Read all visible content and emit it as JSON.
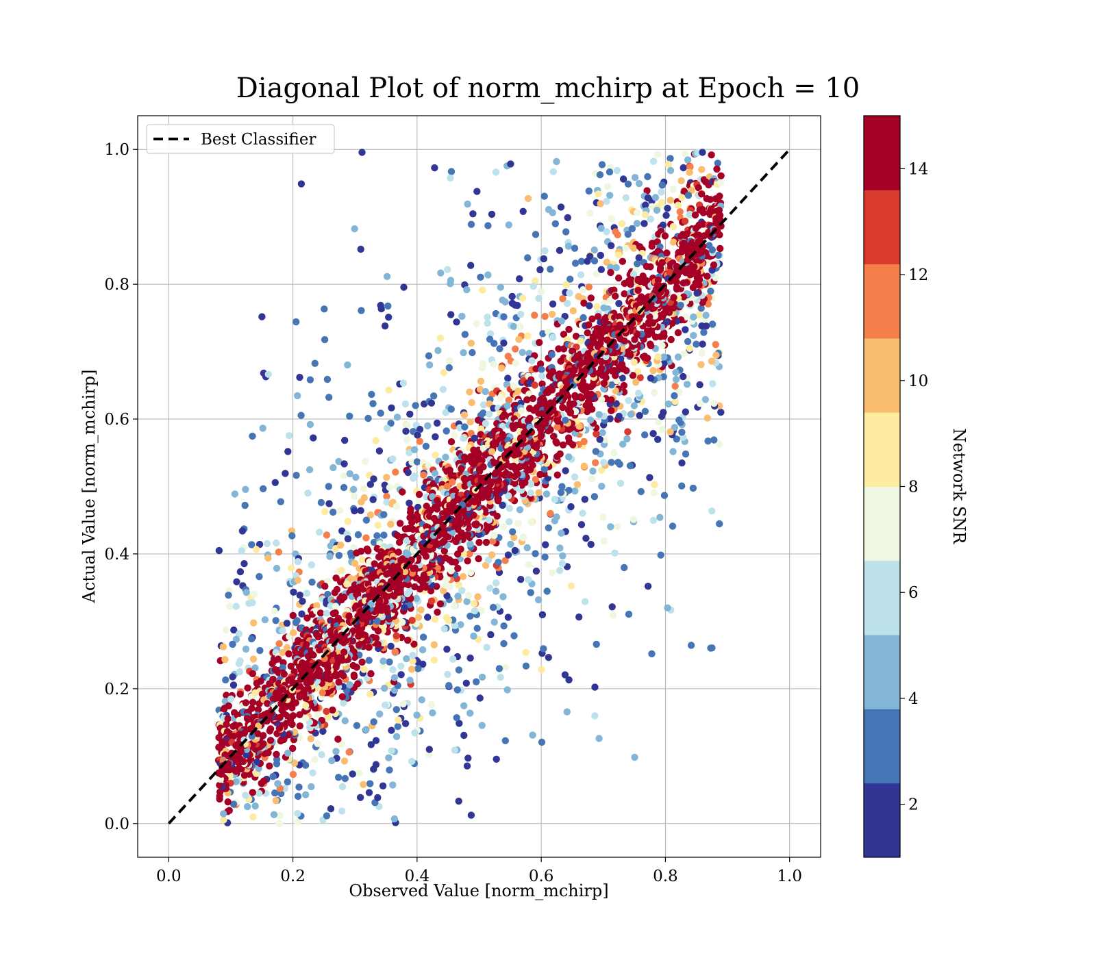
{
  "chart_data": {
    "type": "scatter",
    "title": "Diagonal Plot of norm_mchirp at Epoch = 10",
    "xlabel": "Observed Value [norm_mchirp]",
    "ylabel": "Actual Value [norm_mchirp]",
    "xlim": [
      -0.05,
      1.05
    ],
    "ylim": [
      -0.05,
      1.05
    ],
    "x_ticks": [
      "0.0",
      "0.2",
      "0.4",
      "0.6",
      "0.8",
      "1.0"
    ],
    "y_ticks": [
      "0.0",
      "0.2",
      "0.4",
      "0.6",
      "0.8",
      "1.0"
    ],
    "grid": true,
    "legend": {
      "placement": "top-left",
      "entries": [
        "Best Classifier"
      ]
    },
    "reference_line": {
      "name": "Best Classifier",
      "style": "dashed",
      "color": "#000000",
      "x": [
        0,
        1
      ],
      "y": [
        0,
        1
      ]
    },
    "colorbar": {
      "label": "Network SNR",
      "range": [
        1,
        15
      ],
      "ticks": [
        "2",
        "4",
        "6",
        "8",
        "10",
        "12",
        "14"
      ],
      "bins": [
        1,
        2.4,
        3.8,
        5.2,
        6.6,
        8.0,
        9.4,
        10.8,
        12.2,
        13.6,
        15
      ],
      "colors": [
        "#313695",
        "#4575b4",
        "#83b6d6",
        "#bde2ec",
        "#eef7df",
        "#fdeba0",
        "#fbbd70",
        "#f47f4b",
        "#d83b2e",
        "#a50026"
      ]
    },
    "series_description": "Dense scatter of points concentrated along the diagonal; high-SNR points (dark red) lie near the line y = x, low-SNR points (blue) spread farther away from it.",
    "point_envelope": {
      "x_observed_range": [
        0.08,
        0.88
      ],
      "y_actual_range": [
        0.0,
        1.0
      ]
    }
  }
}
